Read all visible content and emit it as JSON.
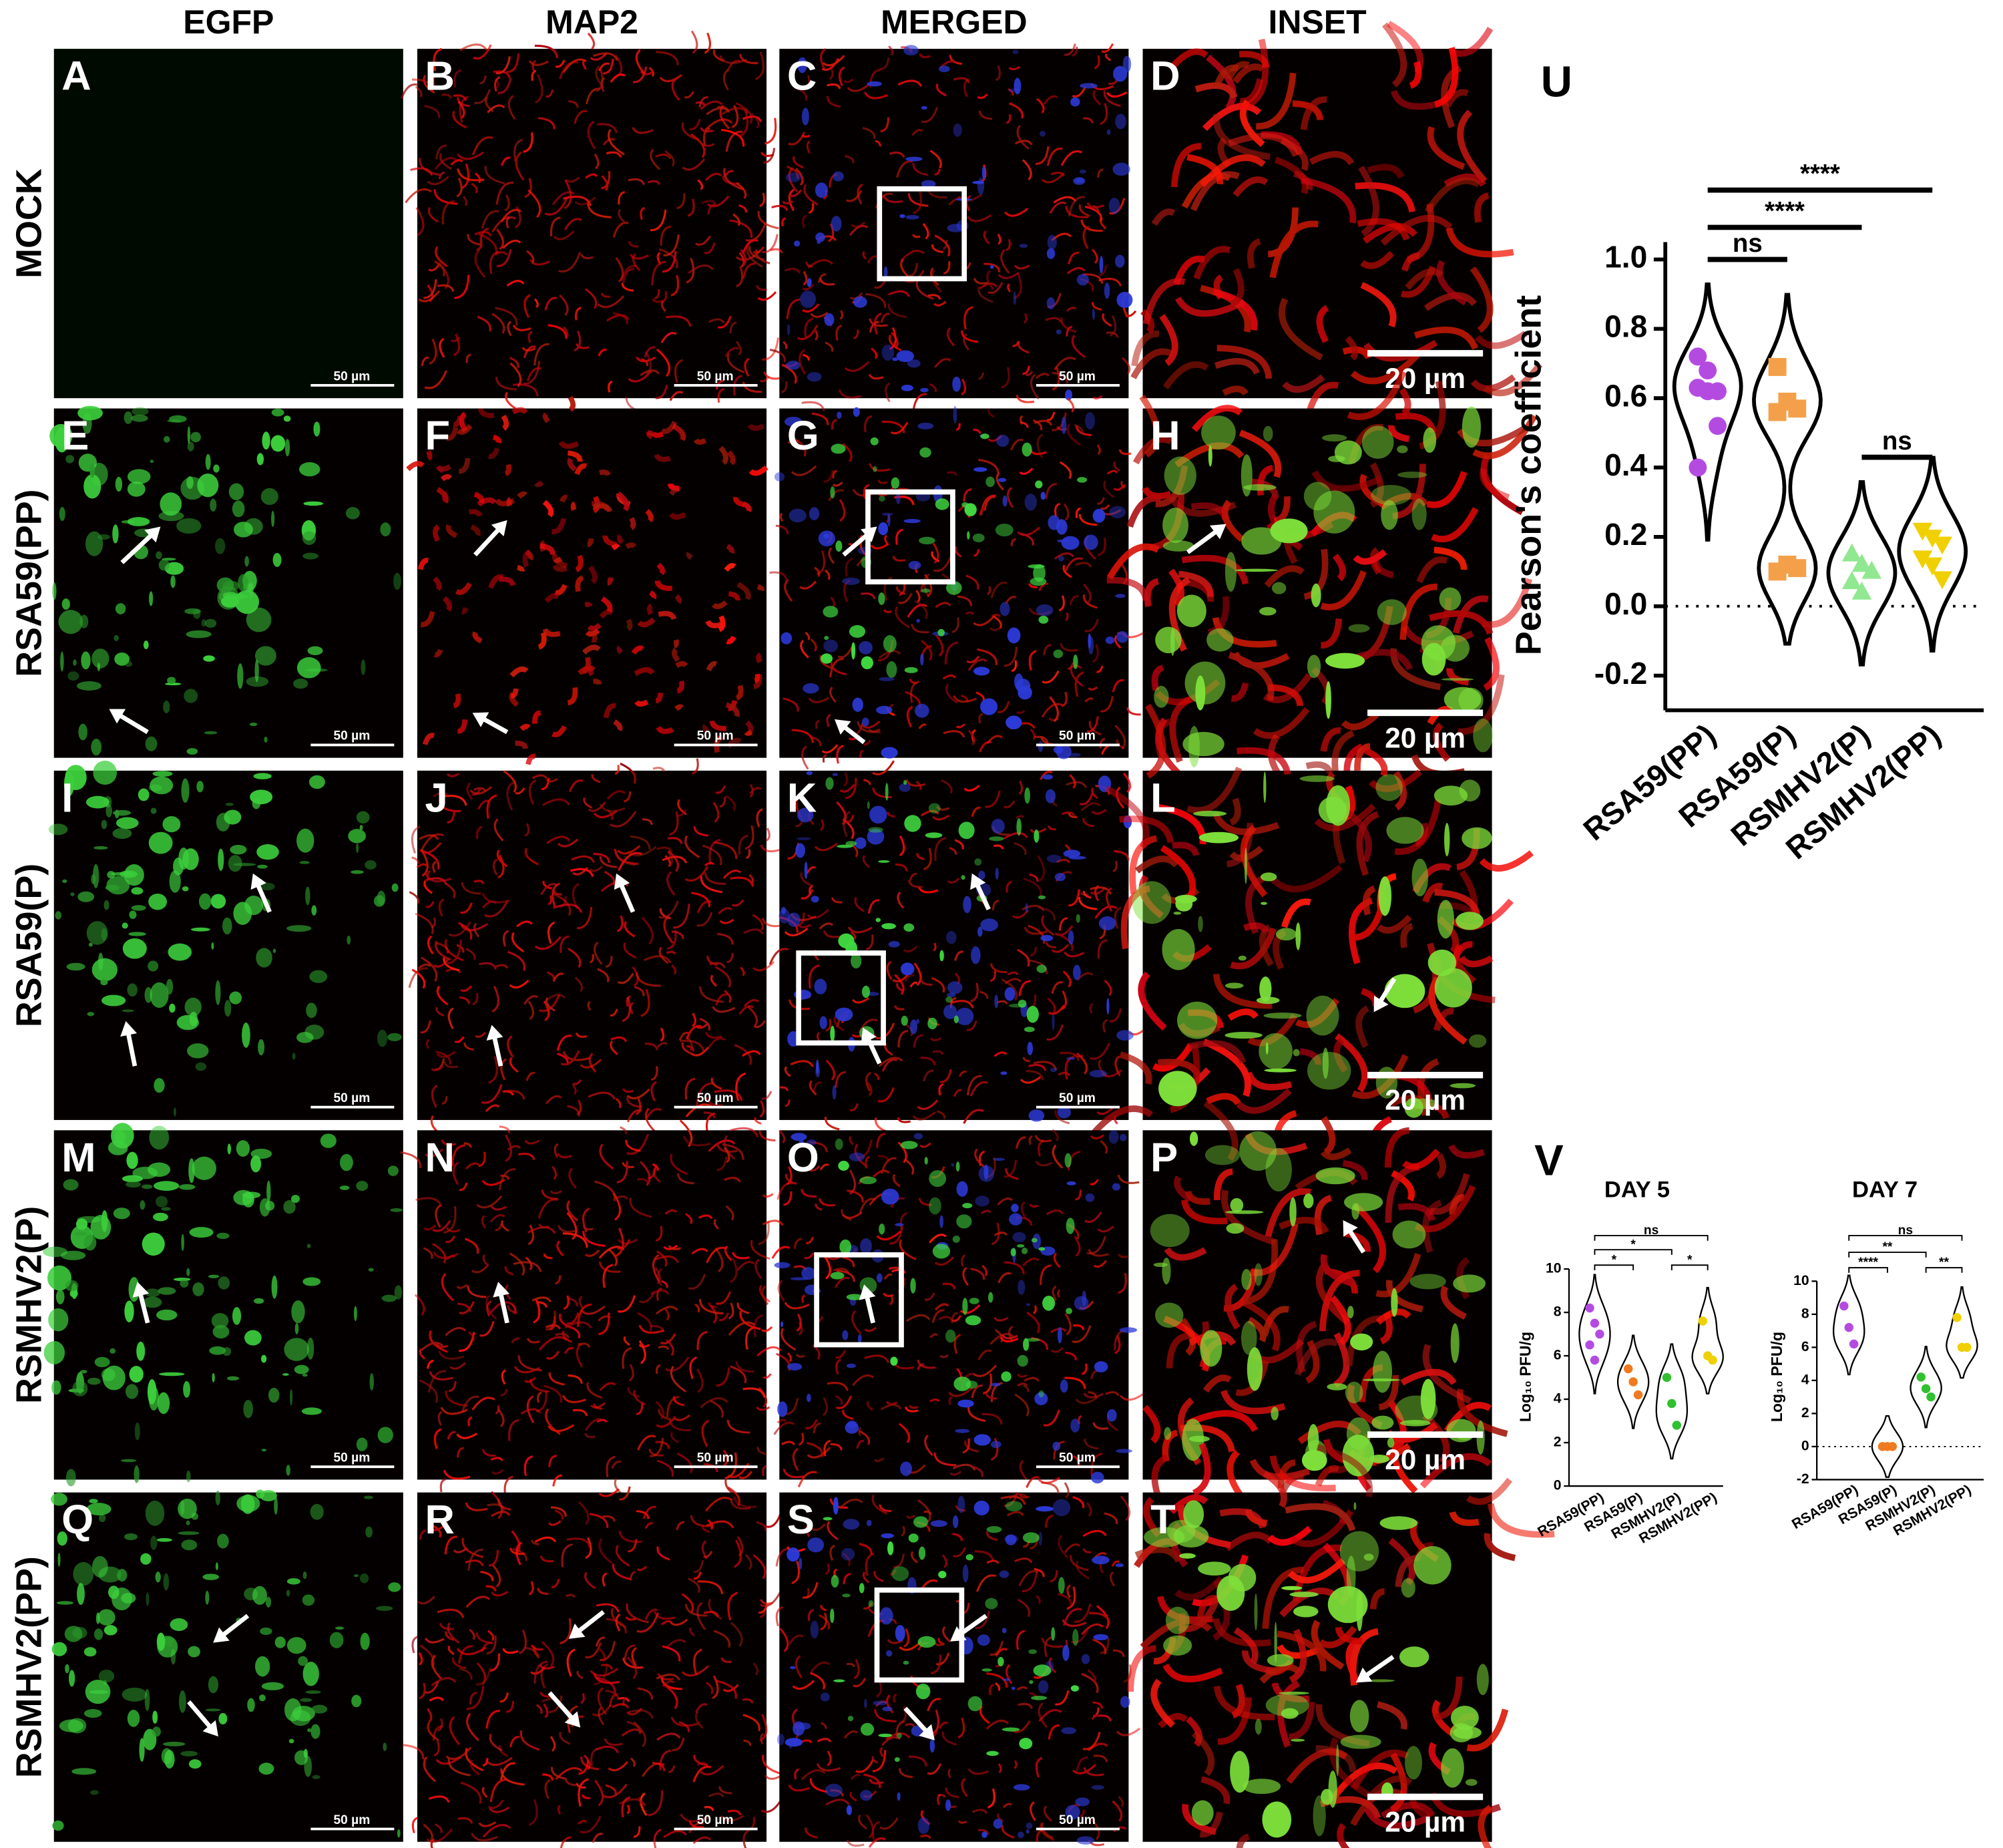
{
  "columns": [
    "EGFP",
    "MAP2",
    "MERGED",
    "INSET"
  ],
  "rows": [
    {
      "label": "MOCK",
      "panels": [
        {
          "letter": "A",
          "scale_bar": "50 µm"
        },
        {
          "letter": "B",
          "scale_bar": "50 µm"
        },
        {
          "letter": "C",
          "scale_bar": "50 µm"
        },
        {
          "letter": "D",
          "scale_bar": "20 µm"
        }
      ]
    },
    {
      "label": "RSA59(PP)",
      "panels": [
        {
          "letter": "E",
          "scale_bar": "50 µm"
        },
        {
          "letter": "F",
          "scale_bar": "50 µm"
        },
        {
          "letter": "G",
          "scale_bar": "50 µm"
        },
        {
          "letter": "H",
          "scale_bar": "20 µm"
        }
      ]
    },
    {
      "label": "RSA59(P)",
      "panels": [
        {
          "letter": "I",
          "scale_bar": "50 µm"
        },
        {
          "letter": "J",
          "scale_bar": "50 µm"
        },
        {
          "letter": "K",
          "scale_bar": "50 µm"
        },
        {
          "letter": "L",
          "scale_bar": "20 µm"
        }
      ]
    },
    {
      "label": "RSMHV2(P)",
      "panels": [
        {
          "letter": "M",
          "scale_bar": "50 µm"
        },
        {
          "letter": "N",
          "scale_bar": "50 µm"
        },
        {
          "letter": "O",
          "scale_bar": "50 µm"
        },
        {
          "letter": "P",
          "scale_bar": "20 µm"
        }
      ]
    },
    {
      "label": "RSMHV2(PP)",
      "panels": [
        {
          "letter": "Q",
          "scale_bar": "50 µm"
        },
        {
          "letter": "R",
          "scale_bar": "50 µm"
        },
        {
          "letter": "S",
          "scale_bar": "50 µm"
        },
        {
          "letter": "T",
          "scale_bar": "20 µm"
        }
      ]
    }
  ],
  "chart_data": [
    {
      "type": "violin",
      "panel": "U",
      "y_label": "Pearson's coefficient",
      "categories": [
        "RSA59(PP)",
        "RSA59(P)",
        "RSMHV2(P)",
        "RSMHV2(PP)"
      ],
      "series": [
        {
          "color": "#b44be1",
          "marker": "circle",
          "values": [
            0.72,
            0.68,
            0.62,
            0.63,
            0.62,
            0.52,
            0.4
          ]
        },
        {
          "color": "#f4a04a",
          "marker": "square",
          "values": [
            0.69,
            0.59,
            0.57,
            0.56,
            0.12,
            0.11,
            0.1
          ]
        },
        {
          "color": "#90e890",
          "marker": "triangle",
          "values": [
            0.15,
            0.12,
            0.1,
            0.07,
            0.04
          ]
        },
        {
          "color": "#f0d000",
          "marker": "triangle-down",
          "values": [
            0.22,
            0.2,
            0.18,
            0.14,
            0.12,
            0.08
          ]
        }
      ],
      "ylim": [
        -0.3,
        1.05
      ],
      "yticks": [
        -0.2,
        {
          "value": 0,
          "label": "0.0"
        },
        0.2,
        0.4,
        0.6,
        0.8,
        {
          "value": 1,
          "label": "1.0"
        }
      ],
      "zero_line": true,
      "significance": [
        {
          "text": "ns",
          "between": [
            "RSA59(PP)",
            "RSA59(P)"
          ]
        },
        {
          "text": "****",
          "between": [
            "RSA59(PP)",
            "RSMHV2(P)"
          ]
        },
        {
          "text": "****",
          "between": [
            "RSA59(PP)",
            "RSMHV2(PP)"
          ]
        },
        {
          "text": "ns",
          "between": [
            "RSMHV2(P)",
            "RSMHV2(PP)"
          ]
        }
      ]
    },
    {
      "type": "violin",
      "panel": "V",
      "title": "DAY 5",
      "y_label": "Log₁₀ PFU/g",
      "categories": [
        "RSA59(PP)",
        "RSA59(P)",
        "RSMHV2(P)",
        "RSMHV2(PP)"
      ],
      "series": [
        {
          "color": "#b44be1",
          "marker": "circle",
          "values": [
            8.2,
            7.5,
            7.0,
            6.5,
            5.8
          ]
        },
        {
          "color": "#f07a20",
          "marker": "circle",
          "values": [
            5.4,
            4.8,
            4.2
          ]
        },
        {
          "color": "#30c030",
          "marker": "circle",
          "values": [
            5.0,
            3.8,
            2.8
          ]
        },
        {
          "color": "#f0d000",
          "marker": "circle",
          "values": [
            7.6,
            6.0,
            5.8
          ]
        }
      ],
      "ylim": [
        0,
        10
      ],
      "yticks": [
        0,
        2,
        4,
        6,
        8,
        10
      ],
      "zero_line": false,
      "significance": [
        {
          "text": "ns",
          "between": [
            "RSA59(PP)",
            "RSMHV2(PP)"
          ]
        },
        {
          "text": "*",
          "between": [
            "RSA59(PP)",
            "RSMHV2(P)"
          ]
        },
        {
          "text": "*",
          "between": [
            "RSA59(PP)",
            "RSA59(P)"
          ]
        },
        {
          "text": "*",
          "between": [
            "RSMHV2(P)",
            "RSMHV2(PP)"
          ]
        }
      ]
    },
    {
      "type": "violin",
      "title": "DAY 7",
      "y_label": "Log₁₀ PFU/g",
      "categories": [
        "RSA59(PP)",
        "RSA59(P)",
        "RSMHV2(P)",
        "RSMHV2(PP)"
      ],
      "series": [
        {
          "color": "#b44be1",
          "marker": "circle",
          "values": [
            8.5,
            7.2,
            6.2
          ]
        },
        {
          "color": "#f07a20",
          "marker": "circle",
          "values": [
            0,
            0,
            0
          ]
        },
        {
          "color": "#30c030",
          "marker": "circle",
          "values": [
            4.2,
            3.5,
            3.0
          ]
        },
        {
          "color": "#f0d000",
          "marker": "circle",
          "values": [
            7.8,
            6.0,
            6.0
          ]
        }
      ],
      "ylim": [
        -2,
        10
      ],
      "yticks": [
        -2,
        0,
        2,
        4,
        6,
        8,
        10
      ],
      "zero_line": true,
      "significance": [
        {
          "text": "ns",
          "between": [
            "RSA59(PP)",
            "RSMHV2(PP)"
          ]
        },
        {
          "text": "**",
          "between": [
            "RSA59(PP)",
            "RSMHV2(P)"
          ]
        },
        {
          "text": "****",
          "between": [
            "RSA59(PP)",
            "RSA59(P)"
          ]
        },
        {
          "text": "**",
          "between": [
            "RSMHV2(P)",
            "RSMHV2(PP)"
          ]
        }
      ]
    }
  ]
}
